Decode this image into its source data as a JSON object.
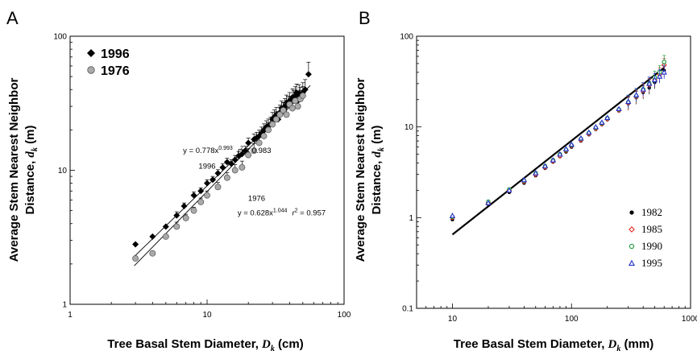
{
  "chart_data": [
    {
      "panel": "A",
      "type": "scatter",
      "xscale": "log",
      "yscale": "log",
      "xlim": [
        1,
        100
      ],
      "ylim": [
        1,
        100
      ],
      "xticks": [
        "1",
        "10",
        "100"
      ],
      "yticks": [
        "1",
        "10",
        "100"
      ],
      "xlabel": "Tree Basal Stem Diameter, ",
      "xlabel_sym": "D",
      "xlabel_sub": "k",
      "xlabel_unit": " (cm)",
      "ylabel_line1": "Average Stem Nearest Neighbor",
      "ylabel_line2": "Distance, ",
      "ylabel_sym": "d",
      "ylabel_sub": "k",
      "ylabel_unit": " (m)",
      "legend_position": "top-left",
      "series": [
        {
          "name": "1996",
          "marker": "diamond",
          "color": "#000000",
          "fit": {
            "a": 0.778,
            "b": 0.993
          },
          "x": [
            3,
            4,
            5,
            6,
            6.8,
            8,
            9,
            10,
            11,
            12,
            13,
            14,
            15,
            16,
            17,
            18,
            19,
            20,
            22,
            23,
            24,
            25,
            26,
            27,
            28,
            29,
            30,
            31,
            32,
            33,
            34,
            35,
            36,
            37,
            38,
            39,
            40,
            41,
            42,
            43,
            44,
            45,
            46,
            47,
            48,
            50,
            52,
            55
          ],
          "y": [
            2.8,
            3.2,
            3.8,
            4.6,
            5.4,
            6.5,
            7,
            8,
            8.5,
            9.5,
            10.5,
            11.5,
            11.2,
            12,
            12.8,
            13.2,
            14,
            16,
            17,
            17.5,
            18,
            19,
            20,
            21,
            21.5,
            22,
            24,
            25,
            26,
            24,
            27,
            29,
            28,
            30,
            32,
            31,
            33,
            30,
            35,
            34,
            36,
            38,
            33,
            37,
            35,
            38,
            40,
            52
          ],
          "yerr": [
            0.2,
            0.2,
            0.2,
            0.3,
            0.3,
            0.4,
            0.4,
            0.5,
            0.5,
            0.6,
            0.7,
            0.8,
            0.8,
            0.9,
            1,
            1,
            1.1,
            1.4,
            1.6,
            1.7,
            1.9,
            2,
            2.2,
            2.4,
            2.6,
            2.8,
            3,
            3.2,
            3.4,
            3.4,
            3.6,
            3.8,
            4,
            4.2,
            4.4,
            4.6,
            5,
            5,
            5.5,
            5.5,
            6,
            6,
            6,
            6.5,
            6.5,
            7,
            7.5,
            12
          ]
        },
        {
          "name": "1976",
          "marker": "circle",
          "color": "#aaaaaa",
          "fit": {
            "a": 0.628,
            "b": 1.044
          },
          "x": [
            3,
            4,
            5,
            6,
            7,
            8,
            9,
            10,
            12,
            14,
            16,
            18,
            20,
            22,
            24,
            26,
            28,
            30,
            32,
            34,
            36,
            38,
            40,
            42,
            44,
            46,
            48,
            50
          ],
          "y": [
            2.2,
            2.4,
            3.2,
            3.8,
            4.4,
            5,
            5.8,
            6.5,
            7.5,
            8.8,
            10,
            10.5,
            13,
            14,
            16,
            18,
            20,
            22,
            24,
            26,
            28,
            26,
            31,
            29,
            33,
            30,
            34,
            36
          ],
          "yerr": [
            0.2,
            0.2,
            0.2,
            0.3,
            0.3,
            0.3,
            0.4,
            0.5,
            0.6,
            0.8,
            1,
            1.2,
            1.5,
            1.8,
            2,
            2.3,
            2.6,
            3,
            3.3,
            3.6,
            4,
            4,
            4.5,
            4.5,
            5,
            5,
            5.5,
            6
          ]
        }
      ],
      "annotations": [
        {
          "id": "eq1996",
          "pre": "y = 0.778x",
          "sup": "0.993",
          "r2_sym": "r",
          "r2_sup": "2",
          "r2_val": " = 0.983",
          "anchor": [
            14,
            13.5
          ]
        },
        {
          "id": "lab1996",
          "text": "1996",
          "anchor": [
            10,
            10.3
          ]
        },
        {
          "id": "lab1976",
          "text": "1976",
          "anchor": [
            23,
            5.9
          ]
        },
        {
          "id": "eq1976",
          "pre": "y = 0.628x",
          "sup": "1.044",
          "r2_sym": "r",
          "r2_sup": "2",
          "r2_val": " = 0.957",
          "anchor": [
            35,
            4.6
          ]
        }
      ]
    },
    {
      "panel": "B",
      "type": "scatter",
      "xscale": "log",
      "yscale": "log",
      "xlim": [
        5,
        1000
      ],
      "ylim": [
        0.1,
        100
      ],
      "xticks": [
        "10",
        "100",
        "1000"
      ],
      "yticks": [
        "0.1",
        "1",
        "10",
        "100"
      ],
      "xlabel": "Tree Basal Stem Diameter, ",
      "xlabel_sym": "D",
      "xlabel_sub": "k",
      "xlabel_unit": " (mm)",
      "ylabel_line1": "Average Stem Nearest Neighbor",
      "ylabel_line2": "Distance, ",
      "ylabel_sym": "d",
      "ylabel_sub": "k",
      "ylabel_unit": " (m)",
      "legend_position": "bottom-right",
      "fit_line": {
        "x": [
          10,
          600
        ],
        "y": [
          0.65,
          45
        ]
      },
      "series": [
        {
          "name": "1982",
          "marker": "filled-circle",
          "color": "#000000",
          "x": [
            10,
            20,
            30,
            40,
            50,
            60,
            70,
            80,
            90,
            100,
            120,
            140,
            160,
            180,
            200,
            250,
            300,
            350,
            400,
            450,
            500,
            550,
            600
          ],
          "y": [
            0.95,
            1.4,
            1.9,
            2.4,
            2.9,
            3.5,
            4.1,
            4.7,
            5.3,
            6,
            7,
            8.2,
            9.4,
            10.6,
            12,
            15,
            18,
            21,
            24,
            27,
            31,
            36,
            42
          ]
        },
        {
          "name": "1985",
          "marker": "open-diamond",
          "color": "#e8291f",
          "x": [
            10,
            20,
            30,
            40,
            50,
            60,
            70,
            80,
            90,
            100,
            120,
            140,
            160,
            180,
            200,
            250,
            300,
            350,
            400,
            450,
            500,
            550,
            600
          ],
          "y": [
            1,
            1.45,
            2,
            2.5,
            3,
            3.6,
            4.2,
            4.8,
            5.5,
            6.2,
            7.2,
            8.4,
            9.6,
            10.8,
            12.2,
            15.3,
            18.3,
            21.5,
            25,
            29,
            33,
            38,
            48
          ]
        },
        {
          "name": "1990",
          "marker": "open-circle",
          "color": "#1d9a3c",
          "x": [
            10,
            20,
            30,
            40,
            50,
            60,
            70,
            80,
            90,
            100,
            120,
            140,
            160,
            180,
            200,
            250,
            300,
            350,
            400,
            450,
            500,
            550,
            600
          ],
          "y": [
            1.02,
            1.5,
            2.05,
            2.55,
            3.1,
            3.7,
            4.3,
            5,
            5.6,
            6.3,
            7.4,
            8.6,
            9.8,
            11,
            12.5,
            15.6,
            18.8,
            22,
            26,
            30,
            35,
            40,
            52
          ]
        },
        {
          "name": "1995",
          "marker": "open-triangle",
          "color": "#2030c8",
          "x": [
            10,
            20,
            30,
            40,
            50,
            60,
            70,
            80,
            90,
            100,
            120,
            140,
            160,
            180,
            200,
            250,
            300,
            350,
            400,
            450,
            500,
            550,
            600
          ],
          "y": [
            1.05,
            1.45,
            2,
            2.6,
            3.1,
            3.7,
            4.3,
            5,
            5.7,
            6.4,
            7.5,
            8.7,
            10,
            11.2,
            12.6,
            15.8,
            19,
            22.5,
            26,
            30,
            33,
            36,
            40
          ]
        }
      ]
    }
  ]
}
